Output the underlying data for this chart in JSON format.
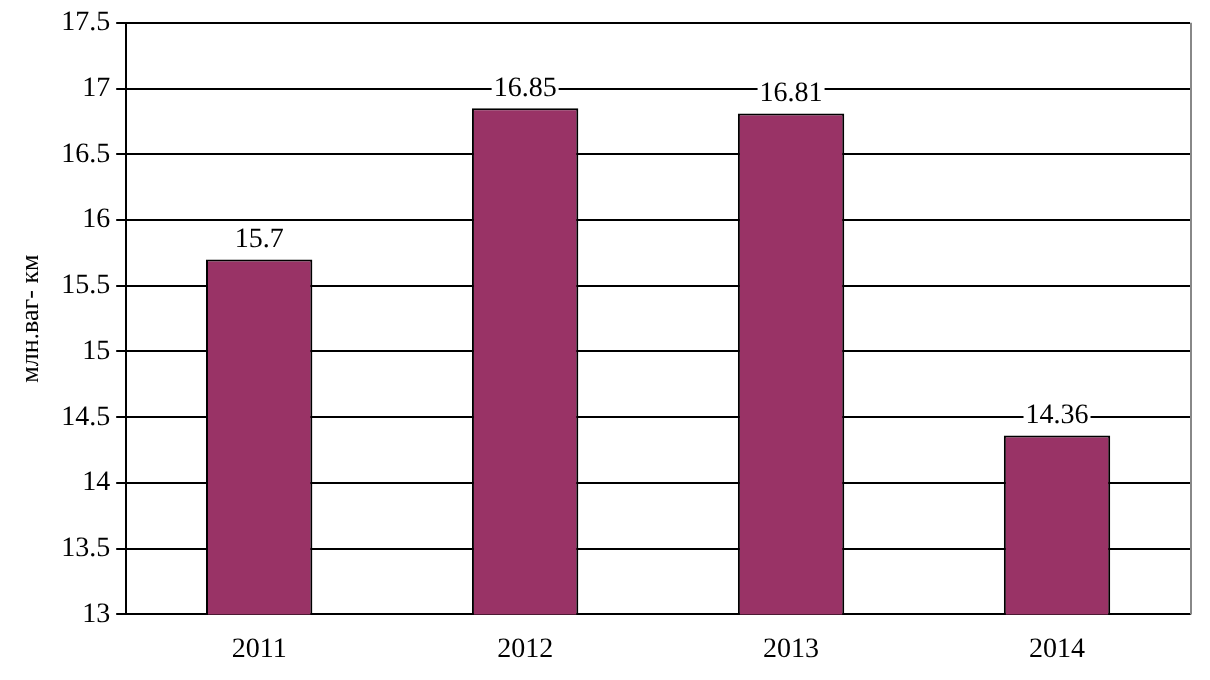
{
  "chart_data": {
    "type": "bar",
    "ylabel": "млн.ваг- км",
    "categories": [
      "2011",
      "2012",
      "2013",
      "2014"
    ],
    "values": [
      15.7,
      16.85,
      16.81,
      14.36
    ],
    "color": "#993366",
    "ylim": [
      13,
      17.5
    ],
    "yticks": [
      13,
      13.5,
      14,
      14.5,
      15,
      15.5,
      16,
      16.5,
      17,
      17.5
    ],
    "grid": "y",
    "data_labels": true,
    "legend": false
  }
}
